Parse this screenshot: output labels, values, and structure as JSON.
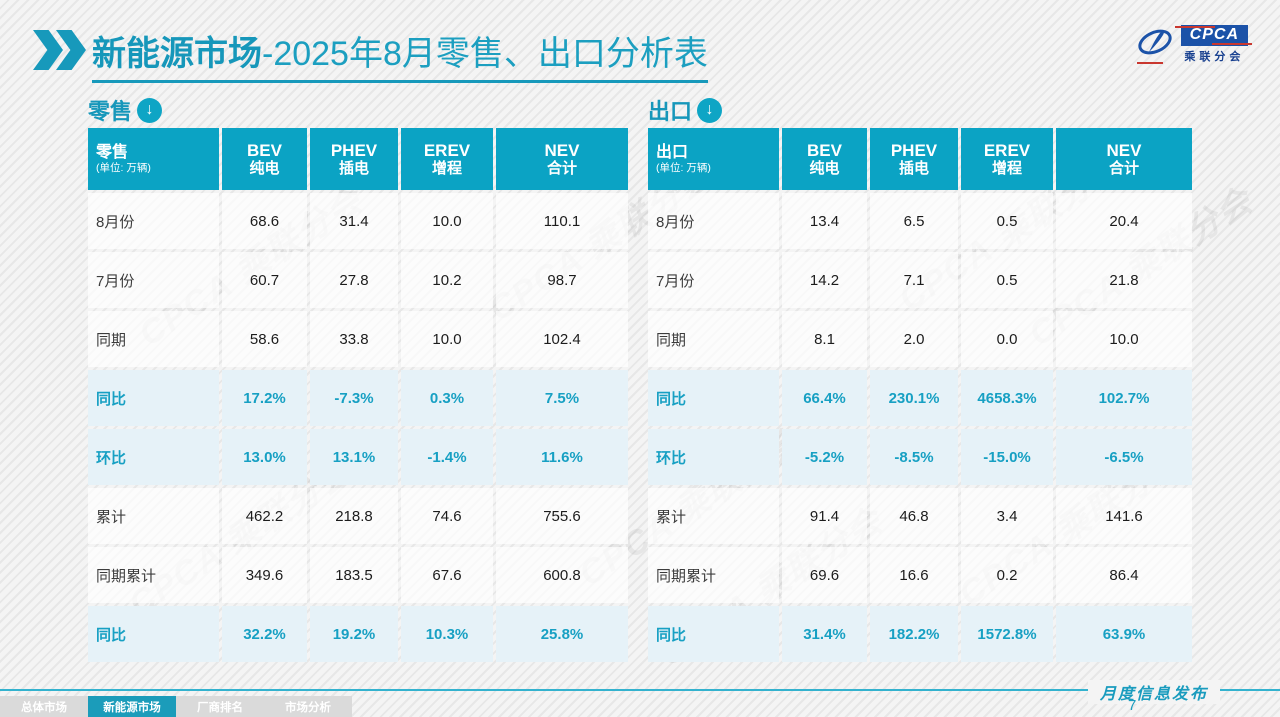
{
  "header": {
    "title_bold": "新能源市场",
    "title_rest": "-2025年8月零售、出口分析表",
    "logo": {
      "cpca": "CPCA",
      "cn": "乘联分会"
    }
  },
  "watermark_text": "CPCA 乘联分会",
  "tables": {
    "retail": {
      "section_title": "零售",
      "header_label": "零售",
      "unit_label": "(单位: 万辆)",
      "columns": [
        {
          "en": "BEV",
          "cn": "纯电"
        },
        {
          "en": "PHEV",
          "cn": "插电"
        },
        {
          "en": "EREV",
          "cn": "增程"
        },
        {
          "en": "NEV",
          "cn": "合计"
        }
      ],
      "rows": [
        {
          "label": "8月份",
          "values": [
            "68.6",
            "31.4",
            "10.0",
            "110.1"
          ],
          "highlight": false
        },
        {
          "label": "7月份",
          "values": [
            "60.7",
            "27.8",
            "10.2",
            "98.7"
          ],
          "highlight": false
        },
        {
          "label": "同期",
          "values": [
            "58.6",
            "33.8",
            "10.0",
            "102.4"
          ],
          "highlight": false
        },
        {
          "label": "同比",
          "values": [
            "17.2%",
            "-7.3%",
            "0.3%",
            "7.5%"
          ],
          "highlight": true
        },
        {
          "label": "环比",
          "values": [
            "13.0%",
            "13.1%",
            "-1.4%",
            "11.6%"
          ],
          "highlight": true
        },
        {
          "label": "累计",
          "values": [
            "462.2",
            "218.8",
            "74.6",
            "755.6"
          ],
          "highlight": false
        },
        {
          "label": "同期累计",
          "values": [
            "349.6",
            "183.5",
            "67.6",
            "600.8"
          ],
          "highlight": false
        },
        {
          "label": "同比",
          "values": [
            "32.2%",
            "19.2%",
            "10.3%",
            "25.8%"
          ],
          "highlight": true
        }
      ]
    },
    "export": {
      "section_title": "出口",
      "header_label": "出口",
      "unit_label": "(单位: 万辆)",
      "columns": [
        {
          "en": "BEV",
          "cn": "纯电"
        },
        {
          "en": "PHEV",
          "cn": "插电"
        },
        {
          "en": "EREV",
          "cn": "增程"
        },
        {
          "en": "NEV",
          "cn": "合计"
        }
      ],
      "rows": [
        {
          "label": "8月份",
          "values": [
            "13.4",
            "6.5",
            "0.5",
            "20.4"
          ],
          "highlight": false
        },
        {
          "label": "7月份",
          "values": [
            "14.2",
            "7.1",
            "0.5",
            "21.8"
          ],
          "highlight": false
        },
        {
          "label": "同期",
          "values": [
            "8.1",
            "2.0",
            "0.0",
            "10.0"
          ],
          "highlight": false
        },
        {
          "label": "同比",
          "values": [
            "66.4%",
            "230.1%",
            "4658.3%",
            "102.7%"
          ],
          "highlight": true
        },
        {
          "label": "环比",
          "values": [
            "-5.2%",
            "-8.5%",
            "-15.0%",
            "-6.5%"
          ],
          "highlight": true
        },
        {
          "label": "累计",
          "values": [
            "91.4",
            "46.8",
            "3.4",
            "141.6"
          ],
          "highlight": false
        },
        {
          "label": "同期累计",
          "values": [
            "69.6",
            "16.6",
            "0.2",
            "86.4"
          ],
          "highlight": false
        },
        {
          "label": "同比",
          "values": [
            "31.4%",
            "182.2%",
            "1572.8%",
            "63.9%"
          ],
          "highlight": true
        }
      ]
    }
  },
  "footer": {
    "tabs": [
      {
        "label": "总体市场",
        "active": false
      },
      {
        "label": "新能源市场",
        "active": true
      },
      {
        "label": "厂商排名",
        "active": false
      },
      {
        "label": "市场分析",
        "active": false
      }
    ],
    "publication_label": "月度信息发布",
    "page_number": "7"
  },
  "colors": {
    "accent": "#0ba3c4",
    "title_text": "#1697ba",
    "highlight_row_bg": "#e6f2f8",
    "highlight_text": "#17a0c3",
    "logo_blue": "#1b52a8",
    "logo_red": "#c9372f",
    "tab_inactive_bg": "#dadada",
    "tab_active_bg": "#1b9cba"
  }
}
